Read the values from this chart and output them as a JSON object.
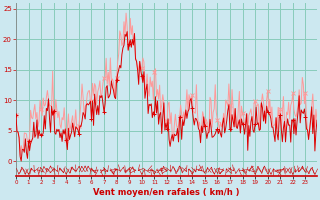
{
  "xlabel": "Vent moyen/en rafales ( km/h )",
  "bg_color": "#cce8f0",
  "grid_color": "#88ccbb",
  "line_color_avg": "#dd0000",
  "line_color_gust": "#ff9999",
  "ylim": [
    -2.5,
    26
  ],
  "xlim": [
    0,
    287
  ],
  "yticks": [
    0,
    5,
    10,
    15,
    20,
    25
  ],
  "wind_avg": [
    7,
    5,
    4,
    2,
    1,
    0,
    0,
    1,
    2,
    3,
    2,
    1,
    3,
    4,
    5,
    4,
    5,
    6,
    5,
    6,
    5,
    4,
    5,
    6,
    5,
    4,
    6,
    7,
    6,
    9,
    9,
    8,
    7,
    6,
    8,
    9,
    8,
    7,
    6,
    5,
    4,
    5,
    4,
    5,
    5,
    6,
    5,
    4,
    3,
    4,
    5,
    4,
    5,
    4,
    5,
    4,
    5,
    6,
    5,
    4,
    5,
    6,
    7,
    8,
    7,
    6,
    7,
    8,
    9,
    10,
    9,
    8,
    7,
    8,
    9,
    10,
    9,
    8,
    9,
    10,
    11,
    10,
    9,
    10,
    9,
    10,
    11,
    12,
    11,
    10,
    11,
    12,
    13,
    12,
    11,
    12,
    13,
    14,
    15,
    16,
    17,
    18,
    19,
    20,
    21,
    20,
    19,
    18,
    19,
    20,
    21,
    20,
    19,
    18,
    17,
    16,
    15,
    14,
    15,
    14,
    13,
    14,
    13,
    12,
    11,
    10,
    9,
    10,
    9,
    10,
    9,
    8,
    9,
    10,
    9,
    8,
    7,
    8,
    7,
    6,
    7,
    8,
    7,
    6,
    5,
    6,
    5,
    4,
    3,
    4,
    3,
    4,
    5,
    4,
    5,
    4,
    5,
    6,
    5,
    6,
    7,
    6,
    7,
    8,
    7,
    8,
    9,
    8,
    9,
    8,
    7,
    8,
    7,
    6,
    5,
    4,
    3,
    4,
    5,
    4,
    5,
    6,
    5,
    4,
    5,
    6,
    5,
    4,
    5,
    6,
    5,
    4,
    5,
    6,
    5,
    4,
    5,
    6,
    7,
    6,
    5,
    6,
    7,
    8,
    7,
    6,
    7,
    6,
    5,
    4,
    5,
    4,
    5,
    6,
    5,
    6,
    7,
    6,
    5,
    6,
    5,
    4,
    5,
    6,
    7,
    6,
    5,
    6,
    7,
    8,
    7,
    6,
    5,
    6,
    7,
    8,
    9,
    8,
    7,
    8,
    9,
    8,
    7,
    6,
    7,
    6,
    5,
    4,
    5,
    4,
    5,
    6,
    5,
    4,
    5,
    6,
    5,
    4,
    5,
    6,
    7,
    6,
    7,
    8,
    7,
    6,
    5,
    6,
    7,
    8,
    9,
    8,
    7,
    8,
    9,
    8,
    7,
    6,
    5,
    4,
    5,
    6,
    7,
    6,
    5,
    4,
    5,
    6
  ],
  "wind_gust": [
    7,
    6,
    5,
    3,
    2,
    1,
    1,
    2,
    3,
    4,
    3,
    2,
    4,
    5,
    7,
    6,
    7,
    8,
    7,
    8,
    7,
    6,
    7,
    8,
    7,
    6,
    8,
    9,
    8,
    11,
    11,
    10,
    9,
    8,
    10,
    11,
    10,
    9,
    8,
    7,
    6,
    7,
    6,
    7,
    7,
    8,
    7,
    6,
    5,
    6,
    7,
    6,
    7,
    6,
    7,
    6,
    7,
    8,
    7,
    6,
    7,
    8,
    9,
    10,
    9,
    8,
    9,
    10,
    11,
    12,
    11,
    10,
    9,
    10,
    11,
    12,
    11,
    10,
    11,
    12,
    13,
    12,
    11,
    12,
    11,
    12,
    13,
    14,
    13,
    12,
    13,
    14,
    15,
    14,
    13,
    14,
    15,
    16,
    17,
    18,
    19,
    20,
    21,
    22,
    22,
    21,
    20,
    19,
    21,
    21,
    21,
    20,
    19,
    18,
    17,
    16,
    15,
    14,
    15,
    14,
    15,
    16,
    15,
    14,
    13,
    12,
    11,
    12,
    11,
    12,
    11,
    10,
    11,
    12,
    11,
    10,
    9,
    10,
    9,
    8,
    9,
    10,
    9,
    8,
    7,
    8,
    7,
    6,
    5,
    6,
    5,
    6,
    7,
    6,
    7,
    6,
    7,
    8,
    7,
    8,
    9,
    8,
    9,
    10,
    9,
    10,
    11,
    10,
    11,
    10,
    9,
    10,
    9,
    8,
    7,
    6,
    5,
    6,
    7,
    6,
    7,
    8,
    7,
    6,
    7,
    8,
    7,
    6,
    7,
    8,
    7,
    6,
    7,
    8,
    7,
    6,
    7,
    8,
    9,
    8,
    7,
    8,
    9,
    10,
    9,
    8,
    9,
    8,
    7,
    6,
    7,
    6,
    7,
    8,
    7,
    8,
    9,
    8,
    7,
    8,
    7,
    6,
    7,
    8,
    9,
    8,
    7,
    8,
    9,
    10,
    9,
    8,
    7,
    8,
    9,
    10,
    11,
    10,
    9,
    10,
    11,
    10,
    9,
    8,
    9,
    8,
    7,
    6,
    7,
    6,
    7,
    8,
    7,
    6,
    7,
    8,
    7,
    6,
    7,
    8,
    9,
    8,
    9,
    10,
    9,
    8,
    7,
    8,
    9,
    10,
    11,
    10,
    9,
    10,
    11,
    10,
    9,
    8,
    7,
    6,
    7,
    8,
    9,
    8,
    7,
    6,
    7,
    8
  ]
}
